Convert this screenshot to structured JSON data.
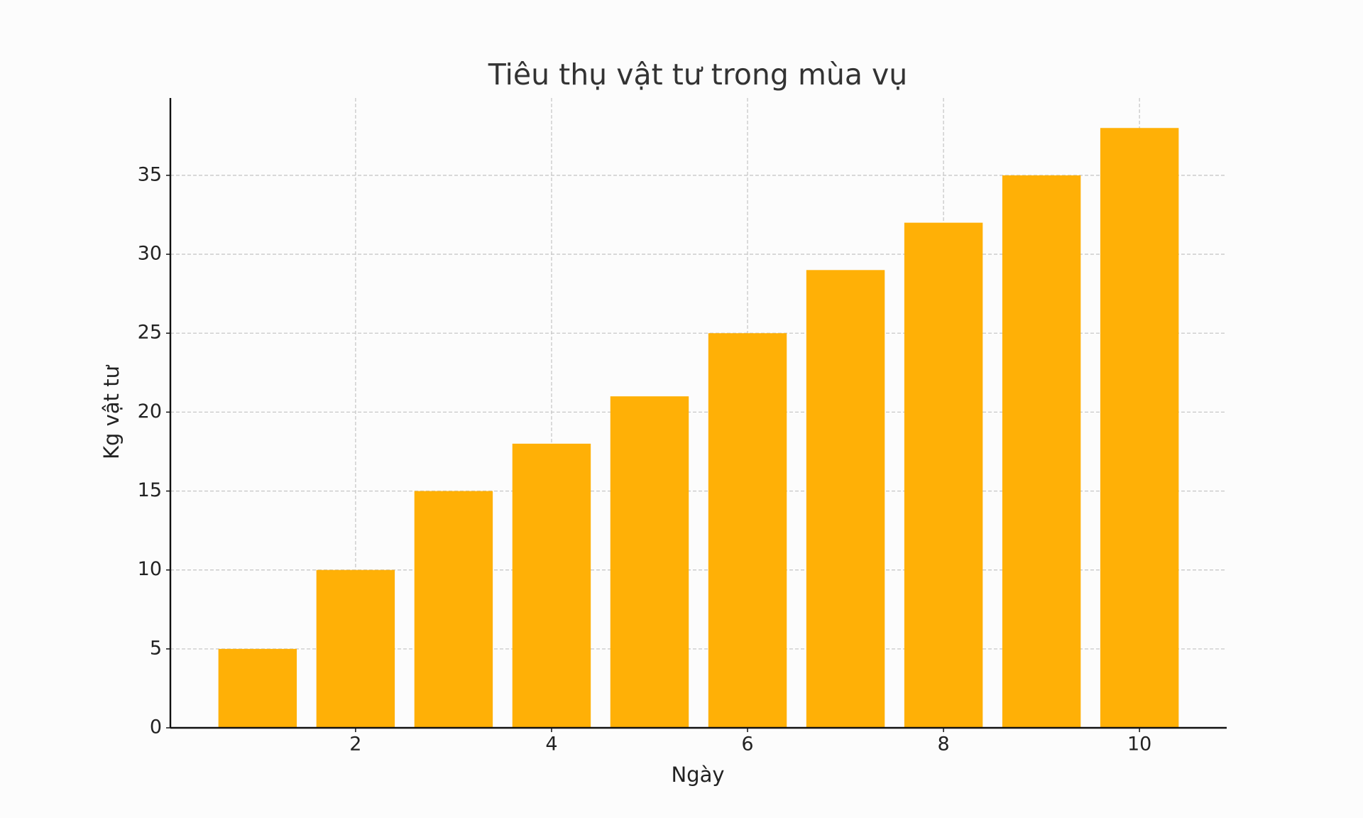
{
  "chart_data": {
    "type": "bar",
    "title": "Tiêu thụ vật tư trong mùa vụ",
    "x_label": "Ngày",
    "y_label": "Kg vật tư",
    "x": [
      1,
      2,
      3,
      4,
      5,
      6,
      7,
      8,
      9,
      10
    ],
    "values": [
      5,
      10,
      15,
      18,
      21,
      25,
      29,
      32,
      35,
      38
    ],
    "color": "#ffb006",
    "xlim": [
      0.11,
      10.89
    ],
    "xticks": [
      2,
      4,
      6,
      8,
      10
    ],
    "ylim": [
      0,
      39.9
    ],
    "yticks": [
      0,
      5,
      10,
      15,
      20,
      25,
      30,
      35
    ],
    "grid": true
  }
}
